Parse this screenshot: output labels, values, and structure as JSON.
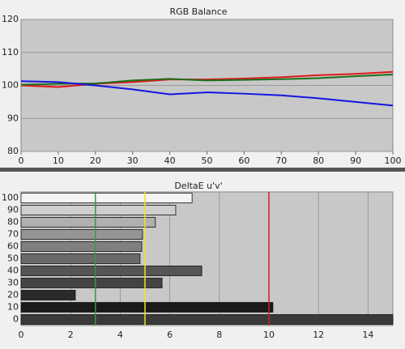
{
  "chart_data": [
    {
      "type": "line",
      "title": "RGB Balance",
      "x": [
        0,
        10,
        20,
        30,
        40,
        50,
        60,
        70,
        80,
        90,
        100
      ],
      "series": [
        {
          "name": "Red",
          "color": "#e01818",
          "values": [
            100,
            99.5,
            100.5,
            101,
            101.8,
            101.8,
            102.1,
            102.5,
            103.1,
            103.5,
            104.1
          ]
        },
        {
          "name": "Green",
          "color": "#1e6e1e",
          "values": [
            100.2,
            100.5,
            100.6,
            101.5,
            102,
            101.5,
            101.7,
            101.9,
            102.2,
            102.8,
            103.3
          ]
        },
        {
          "name": "Blue",
          "color": "#1414e0",
          "values": [
            101.3,
            101,
            100,
            98.8,
            97.3,
            97.9,
            97.5,
            97,
            96.1,
            95,
            93.9
          ]
        }
      ],
      "xlim": [
        0,
        100
      ],
      "xticks": [
        0,
        10,
        20,
        30,
        40,
        50,
        60,
        70,
        80,
        90,
        100
      ],
      "ylim": [
        80,
        120
      ],
      "yticks": [
        80,
        90,
        100,
        110,
        120
      ],
      "grid": "y"
    },
    {
      "type": "hbar",
      "title": "DeltaE u'v'",
      "categories": [
        "0",
        "10",
        "20",
        "30",
        "40",
        "50",
        "60",
        "70",
        "80",
        "90",
        "100"
      ],
      "values": [
        15,
        10.16,
        2.19,
        5.69,
        7.29,
        4.8,
        4.87,
        4.9,
        5.42,
        6.24,
        6.9
      ],
      "colors": [
        "#3a3a3a",
        "#1a1a1a",
        "#2a2a2a",
        "#444444",
        "#555555",
        "#6a6a6a",
        "#808080",
        "#959595",
        "#b0b0b0",
        "#cfcfcf",
        "#f4f4f4"
      ],
      "reference_lines": [
        {
          "value": 3,
          "color": "#3a9a3a"
        },
        {
          "value": 5,
          "color": "#e8e820"
        },
        {
          "value": 10,
          "color": "#d02020"
        }
      ],
      "xlim": [
        0,
        15
      ],
      "xticks": [
        0,
        2,
        4,
        6,
        8,
        10,
        12,
        14
      ],
      "grid": "x"
    }
  ]
}
